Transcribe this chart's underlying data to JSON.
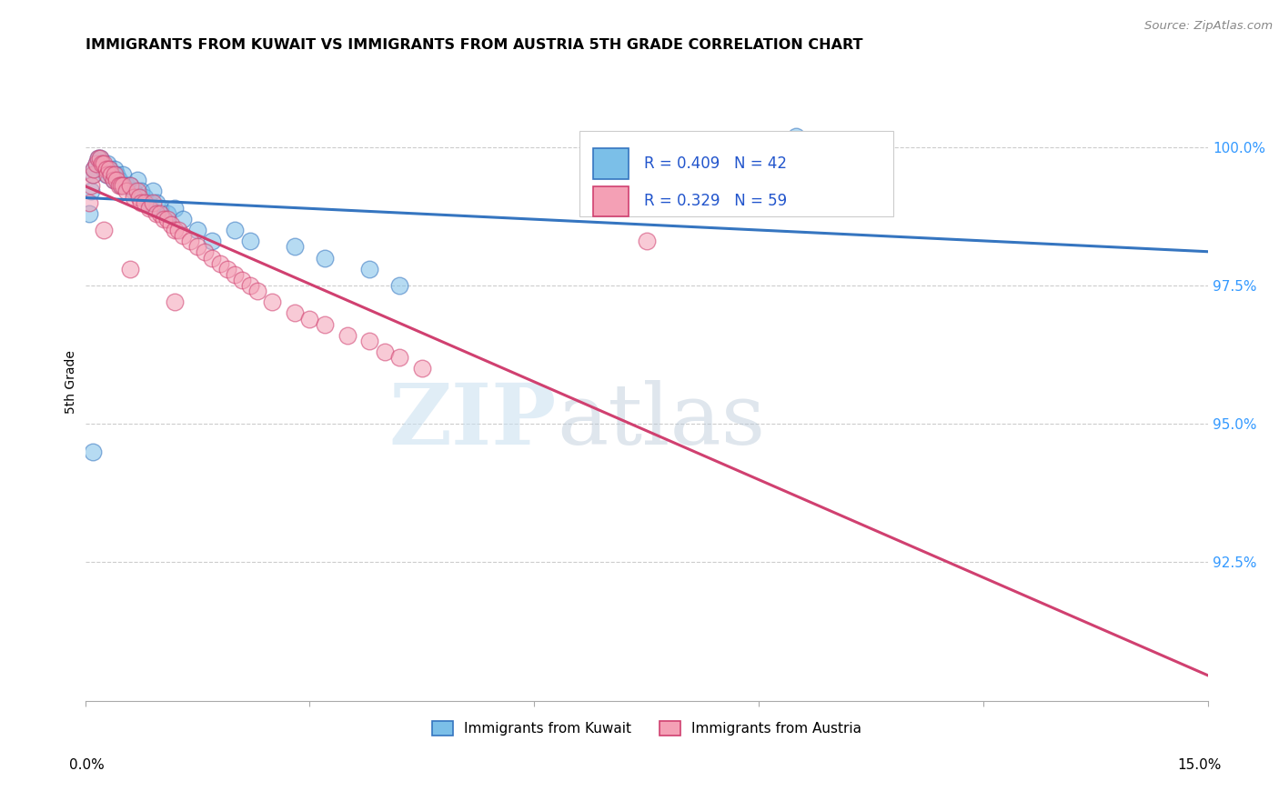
{
  "title": "IMMIGRANTS FROM KUWAIT VS IMMIGRANTS FROM AUSTRIA 5TH GRADE CORRELATION CHART",
  "source": "Source: ZipAtlas.com",
  "ylabel": "5th Grade",
  "xlim": [
    0.0,
    15.0
  ],
  "ylim": [
    90.0,
    101.5
  ],
  "y_ticks": [
    90.0,
    92.5,
    95.0,
    97.5,
    100.0
  ],
  "y_tick_labels": [
    "",
    "92.5%",
    "95.0%",
    "97.5%",
    "100.0%"
  ],
  "R_kuwait": 0.409,
  "N_kuwait": 42,
  "R_austria": 0.329,
  "N_austria": 59,
  "color_kuwait": "#7bbfe8",
  "color_austria": "#f4a0b5",
  "color_trendline_kuwait": "#3575c0",
  "color_trendline_austria": "#d04070",
  "legend_label_kuwait": "Immigrants from Kuwait",
  "legend_label_austria": "Immigrants from Austria",
  "watermark_zip": "ZIP",
  "watermark_atlas": "atlas",
  "kuwait_x": [
    0.05,
    0.08,
    0.1,
    0.12,
    0.15,
    0.18,
    0.2,
    0.22,
    0.25,
    0.28,
    0.3,
    0.32,
    0.35,
    0.38,
    0.4,
    0.42,
    0.45,
    0.48,
    0.5,
    0.55,
    0.6,
    0.65,
    0.7,
    0.75,
    0.8,
    0.85,
    0.9,
    0.95,
    1.0,
    1.1,
    1.2,
    1.3,
    1.5,
    1.7,
    2.0,
    2.2,
    2.8,
    3.2,
    3.8,
    4.2,
    0.1,
    9.5
  ],
  "kuwait_y": [
    98.8,
    99.2,
    99.5,
    99.6,
    99.7,
    99.8,
    99.8,
    99.7,
    99.6,
    99.5,
    99.7,
    99.6,
    99.5,
    99.4,
    99.6,
    99.5,
    99.4,
    99.3,
    99.5,
    99.3,
    99.3,
    99.2,
    99.4,
    99.2,
    99.1,
    99.0,
    99.2,
    99.0,
    98.9,
    98.8,
    98.9,
    98.7,
    98.5,
    98.3,
    98.5,
    98.3,
    98.2,
    98.0,
    97.8,
    97.5,
    94.5,
    100.2
  ],
  "austria_x": [
    0.05,
    0.08,
    0.1,
    0.12,
    0.15,
    0.18,
    0.2,
    0.22,
    0.25,
    0.28,
    0.3,
    0.32,
    0.35,
    0.38,
    0.4,
    0.42,
    0.45,
    0.48,
    0.5,
    0.55,
    0.6,
    0.65,
    0.7,
    0.72,
    0.75,
    0.8,
    0.85,
    0.9,
    0.95,
    1.0,
    1.05,
    1.1,
    1.15,
    1.2,
    1.25,
    1.3,
    1.4,
    1.5,
    1.6,
    1.7,
    1.8,
    1.9,
    2.0,
    2.1,
    2.2,
    2.3,
    2.5,
    2.8,
    3.0,
    3.2,
    3.5,
    3.8,
    4.0,
    4.2,
    4.5,
    0.25,
    0.6,
    1.2,
    7.5
  ],
  "austria_y": [
    99.0,
    99.3,
    99.5,
    99.6,
    99.7,
    99.8,
    99.8,
    99.7,
    99.7,
    99.6,
    99.5,
    99.6,
    99.5,
    99.4,
    99.5,
    99.4,
    99.3,
    99.3,
    99.3,
    99.2,
    99.3,
    99.1,
    99.2,
    99.1,
    99.0,
    99.0,
    98.9,
    99.0,
    98.8,
    98.8,
    98.7,
    98.7,
    98.6,
    98.5,
    98.5,
    98.4,
    98.3,
    98.2,
    98.1,
    98.0,
    97.9,
    97.8,
    97.7,
    97.6,
    97.5,
    97.4,
    97.2,
    97.0,
    96.9,
    96.8,
    96.6,
    96.5,
    96.3,
    96.2,
    96.0,
    98.5,
    97.8,
    97.2,
    98.3
  ]
}
